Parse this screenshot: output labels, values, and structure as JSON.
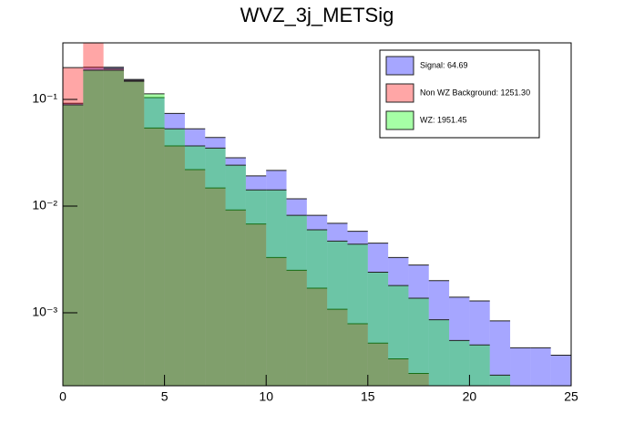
{
  "chart_data": {
    "type": "histogram",
    "title": "WVZ_3j_METSig",
    "bins": [
      0,
      1,
      2,
      3,
      4,
      5,
      6,
      7,
      8,
      9,
      10,
      11,
      12,
      13,
      14,
      15,
      16,
      17,
      18,
      19,
      20,
      21,
      22,
      23,
      24,
      25
    ],
    "log_y": true,
    "series": [
      {
        "name": "Signal: 64.69",
        "color": "#0000ff",
        "values": [
          0.092,
          0.2,
          0.2,
          0.154,
          0.104,
          0.074,
          0.053,
          0.044,
          0.0284,
          0.0192,
          0.0216,
          0.0117,
          0.0082,
          0.0069,
          0.0058,
          0.0045,
          0.0033,
          0.0028,
          0.002,
          0.0014,
          0.00129,
          0.00084,
          0.00047,
          0.00047,
          0.0004
        ]
      },
      {
        "name": "Non WZ Background: 1251.30",
        "color": "#ff0000",
        "values": [
          0.199,
          0.35,
          0.195,
          0.151,
          0.054,
          0.0367,
          0.022,
          0.0148,
          0.0092,
          0.0068,
          0.0033,
          0.0025,
          0.0017,
          0.00108,
          0.00079,
          0.00052,
          0.00037,
          0.00027,
          null,
          null,
          null,
          null,
          null,
          null,
          null
        ]
      },
      {
        "name": "WZ: 1951.45",
        "color": "#00ff00",
        "values": [
          0.089,
          0.188,
          0.188,
          0.148,
          0.113,
          0.053,
          0.0367,
          0.035,
          0.0242,
          0.0142,
          0.0142,
          0.0082,
          0.006,
          0.0047,
          0.0044,
          0.0024,
          0.0018,
          0.00137,
          0.00086,
          0.00055,
          0.0005,
          0.00026,
          null,
          null,
          null
        ]
      }
    ],
    "xlim": [
      0,
      25
    ],
    "xticks": [
      0,
      5,
      10,
      15,
      20,
      25
    ],
    "ylim": [
      0.000207,
      0.339
    ],
    "yticks": [
      {
        "value": 0.001,
        "label": "10⁻³"
      },
      {
        "value": 0.01,
        "label": "10⁻²"
      },
      {
        "value": 0.1,
        "label": "10⁻¹"
      }
    ],
    "legend": "upper right"
  }
}
